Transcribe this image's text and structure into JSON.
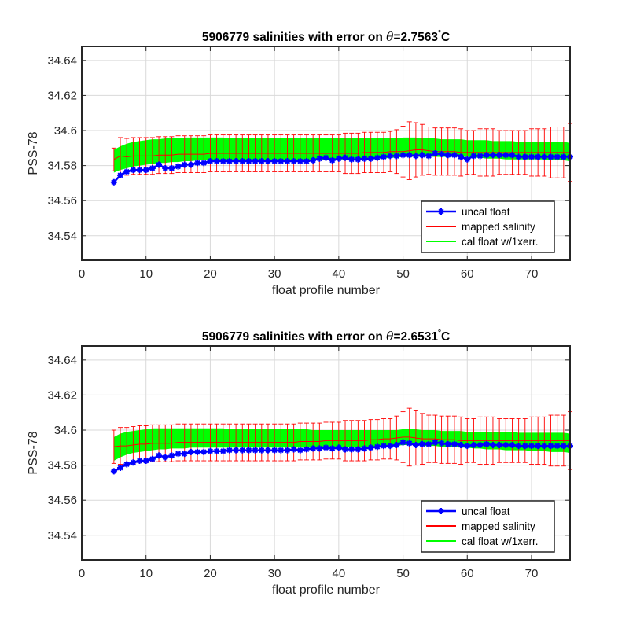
{
  "chart_data": [
    {
      "type": "line",
      "title_prefix": "5906779 salinities with error on ",
      "title_theta": "θ",
      "title_value": "=2.7563",
      "title_degree": "°",
      "title_unit": "C",
      "xlabel": "float profile number",
      "ylabel": "PSS-78",
      "xlim": [
        0,
        76
      ],
      "ylim": [
        34.526,
        34.648
      ],
      "xticks": [
        0,
        10,
        20,
        30,
        40,
        50,
        60,
        70
      ],
      "xtick_labels": [
        "0",
        "10",
        "20",
        "30",
        "40",
        "50",
        "60",
        "70"
      ],
      "yticks": [
        34.54,
        34.56,
        34.58,
        34.6,
        34.62,
        34.64
      ],
      "ytick_labels": [
        "34.54",
        "34.56",
        "34.58",
        "34.6",
        "34.62",
        "34.64"
      ],
      "grid": true,
      "legend_position": "bottom-right",
      "x": [
        5,
        6,
        7,
        8,
        9,
        10,
        11,
        12,
        13,
        14,
        15,
        16,
        17,
        18,
        19,
        20,
        21,
        22,
        23,
        24,
        25,
        26,
        27,
        28,
        29,
        30,
        31,
        32,
        33,
        34,
        35,
        36,
        37,
        38,
        39,
        40,
        41,
        42,
        43,
        44,
        45,
        46,
        47,
        48,
        49,
        50,
        51,
        52,
        53,
        54,
        55,
        56,
        57,
        58,
        59,
        60,
        61,
        62,
        63,
        64,
        65,
        66,
        67,
        68,
        69,
        70,
        71,
        72,
        73,
        74,
        75,
        76
      ],
      "series": [
        {
          "name": "uncal float",
          "role": "uncal",
          "color": "#0000ff",
          "values": [
            34.5705,
            34.5745,
            34.5765,
            34.5775,
            34.5775,
            34.5775,
            34.5785,
            34.5805,
            34.5785,
            34.5785,
            34.5795,
            34.5805,
            34.5805,
            34.5815,
            34.5815,
            34.5825,
            34.5825,
            34.5825,
            34.5825,
            34.5825,
            34.5825,
            34.5825,
            34.5825,
            34.5825,
            34.5825,
            34.5825,
            34.5825,
            34.5825,
            34.5825,
            34.5825,
            34.5825,
            34.583,
            34.584,
            34.5845,
            34.583,
            34.584,
            34.5845,
            34.5835,
            34.5835,
            34.584,
            34.584,
            34.5845,
            34.585,
            34.5855,
            34.5855,
            34.586,
            34.586,
            34.5855,
            34.586,
            34.5855,
            34.587,
            34.5865,
            34.586,
            34.586,
            34.585,
            34.5835,
            34.5855,
            34.5855,
            34.586,
            34.586,
            34.586,
            34.586,
            34.586,
            34.585,
            34.585,
            34.585,
            34.585,
            34.585,
            34.585,
            34.585,
            34.585,
            34.585
          ]
        },
        {
          "name": "mapped salinity",
          "role": "mapped",
          "color": "#ff0000",
          "values": [
            34.5835,
            34.5855,
            34.585,
            34.5855,
            34.5855,
            34.5855,
            34.5855,
            34.586,
            34.586,
            34.586,
            34.5865,
            34.5865,
            34.5865,
            34.5865,
            34.5865,
            34.587,
            34.587,
            34.587,
            34.587,
            34.587,
            34.587,
            34.587,
            34.587,
            34.587,
            34.587,
            34.587,
            34.587,
            34.587,
            34.587,
            34.587,
            34.587,
            34.587,
            34.587,
            34.587,
            34.587,
            34.587,
            34.587,
            34.587,
            34.587,
            34.5875,
            34.5875,
            34.5875,
            34.5875,
            34.588,
            34.588,
            34.588,
            34.5885,
            34.589,
            34.589,
            34.5885,
            34.588,
            34.588,
            34.588,
            34.588,
            34.5875,
            34.5875,
            34.5875,
            34.5875,
            34.5875,
            34.5875,
            34.5875,
            34.5875,
            34.5875,
            34.5875,
            34.5875,
            34.5875,
            34.5875,
            34.5875,
            34.5875,
            34.5875,
            34.5875,
            34.5875
          ],
          "error": [
            0.0065,
            0.0105,
            0.0105,
            0.0105,
            0.0105,
            0.0105,
            0.0105,
            0.0105,
            0.0105,
            0.0105,
            0.0105,
            0.0105,
            0.0105,
            0.0105,
            0.0105,
            0.0105,
            0.0105,
            0.0105,
            0.0105,
            0.0105,
            0.0105,
            0.0105,
            0.0105,
            0.0105,
            0.0105,
            0.0105,
            0.0105,
            0.0105,
            0.0105,
            0.0105,
            0.0105,
            0.0105,
            0.0105,
            0.0105,
            0.0105,
            0.0105,
            0.0115,
            0.0115,
            0.0115,
            0.0115,
            0.0115,
            0.0115,
            0.0115,
            0.0115,
            0.0125,
            0.0145,
            0.0165,
            0.0155,
            0.0145,
            0.0135,
            0.0135,
            0.0135,
            0.0135,
            0.0135,
            0.0135,
            0.0125,
            0.0125,
            0.0135,
            0.0135,
            0.0135,
            0.0125,
            0.0125,
            0.0125,
            0.0125,
            0.0125,
            0.0135,
            0.0135,
            0.0135,
            0.0145,
            0.0145,
            0.0145,
            0.0165
          ]
        },
        {
          "name": "cal float w/1xerr.",
          "role": "calband",
          "color": "#00ff00",
          "lower": [
            34.576,
            34.5775,
            34.5785,
            34.5795,
            34.58,
            34.5805,
            34.581,
            34.5815,
            34.5815,
            34.582,
            34.582,
            34.5825,
            34.5825,
            34.583,
            34.583,
            34.583,
            34.583,
            34.583,
            34.583,
            34.583,
            34.583,
            34.583,
            34.583,
            34.583,
            34.583,
            34.583,
            34.583,
            34.583,
            34.583,
            34.583,
            34.583,
            34.583,
            34.583,
            34.5835,
            34.5835,
            34.5835,
            34.5835,
            34.5835,
            34.5835,
            34.584,
            34.584,
            34.584,
            34.584,
            34.5845,
            34.5845,
            34.585,
            34.585,
            34.585,
            34.585,
            34.585,
            34.585,
            34.585,
            34.585,
            34.585,
            34.585,
            34.585,
            34.5845,
            34.5845,
            34.584,
            34.584,
            34.584,
            34.5835,
            34.5835,
            34.5835,
            34.5835,
            34.5835,
            34.5835,
            34.5835,
            34.583,
            34.583,
            34.583,
            34.5825
          ],
          "upper": [
            34.589,
            34.591,
            34.5925,
            34.5935,
            34.594,
            34.5945,
            34.595,
            34.595,
            34.5955,
            34.5955,
            34.5955,
            34.596,
            34.596,
            34.596,
            34.596,
            34.596,
            34.596,
            34.596,
            34.5955,
            34.5955,
            34.5955,
            34.5955,
            34.5955,
            34.5955,
            34.5955,
            34.5955,
            34.5955,
            34.5955,
            34.5955,
            34.5955,
            34.5955,
            34.5955,
            34.5955,
            34.5955,
            34.5955,
            34.5955,
            34.5955,
            34.5955,
            34.5955,
            34.5955,
            34.5955,
            34.5955,
            34.5955,
            34.5955,
            34.5955,
            34.596,
            34.596,
            34.596,
            34.5955,
            34.5955,
            34.5955,
            34.595,
            34.595,
            34.595,
            34.595,
            34.5945,
            34.5945,
            34.5945,
            34.5945,
            34.594,
            34.594,
            34.594,
            34.594,
            34.5935,
            34.5935,
            34.5935,
            34.5935,
            34.5935,
            34.5935,
            34.5935,
            34.5935,
            34.593
          ]
        }
      ]
    },
    {
      "type": "line",
      "title_prefix": "5906779 salinities with error on ",
      "title_theta": "θ",
      "title_value": "=2.6531",
      "title_degree": "°",
      "title_unit": "C",
      "xlabel": "float profile number",
      "ylabel": "PSS-78",
      "xlim": [
        0,
        76
      ],
      "ylim": [
        34.526,
        34.648
      ],
      "xticks": [
        0,
        10,
        20,
        30,
        40,
        50,
        60,
        70
      ],
      "xtick_labels": [
        "0",
        "10",
        "20",
        "30",
        "40",
        "50",
        "60",
        "70"
      ],
      "yticks": [
        34.54,
        34.56,
        34.58,
        34.6,
        34.62,
        34.64
      ],
      "ytick_labels": [
        "34.54",
        "34.56",
        "34.58",
        "34.6",
        "34.62",
        "34.64"
      ],
      "grid": true,
      "legend_position": "bottom-right",
      "x": [
        5,
        6,
        7,
        8,
        9,
        10,
        11,
        12,
        13,
        14,
        15,
        16,
        17,
        18,
        19,
        20,
        21,
        22,
        23,
        24,
        25,
        26,
        27,
        28,
        29,
        30,
        31,
        32,
        33,
        34,
        35,
        36,
        37,
        38,
        39,
        40,
        41,
        42,
        43,
        44,
        45,
        46,
        47,
        48,
        49,
        50,
        51,
        52,
        53,
        54,
        55,
        56,
        57,
        58,
        59,
        60,
        61,
        62,
        63,
        64,
        65,
        66,
        67,
        68,
        69,
        70,
        71,
        72,
        73,
        74,
        75,
        76
      ],
      "series": [
        {
          "name": "uncal float",
          "role": "uncal",
          "color": "#0000ff",
          "values": [
            34.5765,
            34.5785,
            34.5805,
            34.5815,
            34.5825,
            34.5825,
            34.5835,
            34.5855,
            34.5845,
            34.5855,
            34.5865,
            34.5865,
            34.5875,
            34.5875,
            34.5875,
            34.588,
            34.588,
            34.588,
            34.5885,
            34.5885,
            34.5885,
            34.5885,
            34.5885,
            34.5885,
            34.5885,
            34.5885,
            34.5885,
            34.5885,
            34.589,
            34.5885,
            34.589,
            34.5895,
            34.5895,
            34.59,
            34.5895,
            34.59,
            34.589,
            34.589,
            34.589,
            34.5895,
            34.59,
            34.5905,
            34.591,
            34.591,
            34.5915,
            34.593,
            34.5925,
            34.5915,
            34.592,
            34.592,
            34.593,
            34.5925,
            34.592,
            34.592,
            34.5915,
            34.591,
            34.5915,
            34.5915,
            34.592,
            34.5915,
            34.5915,
            34.5915,
            34.5915,
            34.591,
            34.591,
            34.591,
            34.591,
            34.591,
            34.591,
            34.591,
            34.591,
            34.591
          ]
        },
        {
          "name": "mapped salinity",
          "role": "mapped",
          "color": "#ff0000",
          "values": [
            34.5905,
            34.591,
            34.591,
            34.5915,
            34.592,
            34.592,
            34.5925,
            34.5925,
            34.5925,
            34.5925,
            34.593,
            34.593,
            34.593,
            34.593,
            34.593,
            34.593,
            34.593,
            34.593,
            34.593,
            34.593,
            34.593,
            34.593,
            34.593,
            34.593,
            34.593,
            34.593,
            34.593,
            34.593,
            34.593,
            34.5935,
            34.5935,
            34.5935,
            34.5935,
            34.594,
            34.594,
            34.594,
            34.594,
            34.594,
            34.594,
            34.594,
            34.5945,
            34.5945,
            34.595,
            34.595,
            34.5955,
            34.596,
            34.596,
            34.5955,
            34.595,
            34.595,
            34.595,
            34.5945,
            34.5945,
            34.5945,
            34.594,
            34.594,
            34.594,
            34.594,
            34.594,
            34.594,
            34.594,
            34.594,
            34.594,
            34.594,
            34.594,
            34.594,
            34.594,
            34.594,
            34.594,
            34.594,
            34.594,
            34.594
          ],
          "error": [
            0.0095,
            0.0105,
            0.0105,
            0.0105,
            0.0105,
            0.0105,
            0.0105,
            0.0105,
            0.0105,
            0.0105,
            0.0105,
            0.0105,
            0.0105,
            0.0105,
            0.0105,
            0.0105,
            0.0105,
            0.0105,
            0.0105,
            0.0105,
            0.0105,
            0.0105,
            0.0105,
            0.0105,
            0.0105,
            0.0105,
            0.0105,
            0.0105,
            0.0105,
            0.0105,
            0.0105,
            0.0105,
            0.0105,
            0.0105,
            0.0105,
            0.0105,
            0.0115,
            0.0115,
            0.0115,
            0.0115,
            0.0115,
            0.0115,
            0.0115,
            0.0115,
            0.0125,
            0.0145,
            0.0165,
            0.0155,
            0.0145,
            0.0135,
            0.0135,
            0.0135,
            0.0135,
            0.0135,
            0.0135,
            0.0125,
            0.0125,
            0.0135,
            0.0135,
            0.0135,
            0.0125,
            0.0125,
            0.0125,
            0.0125,
            0.0125,
            0.0135,
            0.0135,
            0.0135,
            0.0145,
            0.0145,
            0.0145,
            0.0165
          ]
        },
        {
          "name": "cal float w/1xerr.",
          "role": "calband",
          "color": "#00ff00",
          "lower": [
            34.5825,
            34.5845,
            34.586,
            34.587,
            34.5875,
            34.588,
            34.5885,
            34.589,
            34.589,
            34.5895,
            34.5895,
            34.5895,
            34.59,
            34.59,
            34.59,
            34.59,
            34.59,
            34.59,
            34.59,
            34.59,
            34.59,
            34.59,
            34.59,
            34.59,
            34.59,
            34.59,
            34.59,
            34.59,
            34.59,
            34.59,
            34.59,
            34.59,
            34.59,
            34.59,
            34.59,
            34.59,
            34.59,
            34.59,
            34.59,
            34.59,
            34.59,
            34.59,
            34.5905,
            34.5905,
            34.591,
            34.5915,
            34.5915,
            34.5915,
            34.591,
            34.591,
            34.591,
            34.5905,
            34.5905,
            34.5905,
            34.59,
            34.59,
            34.5895,
            34.5895,
            34.589,
            34.589,
            34.589,
            34.5885,
            34.5885,
            34.5885,
            34.5885,
            34.588,
            34.588,
            34.588,
            34.5875,
            34.5875,
            34.5875,
            34.587
          ],
          "upper": [
            34.596,
            34.598,
            34.599,
            34.5995,
            34.6,
            34.6005,
            34.601,
            34.601,
            34.601,
            34.601,
            34.601,
            34.601,
            34.601,
            34.601,
            34.601,
            34.601,
            34.601,
            34.601,
            34.6005,
            34.6005,
            34.6005,
            34.6005,
            34.6005,
            34.6005,
            34.6005,
            34.6005,
            34.6005,
            34.6005,
            34.6005,
            34.6005,
            34.6005,
            34.6,
            34.6,
            34.6,
            34.6,
            34.6,
            34.6,
            34.6,
            34.6,
            34.6,
            34.6,
            34.6,
            34.6,
            34.6,
            34.6,
            34.6005,
            34.6005,
            34.6005,
            34.6,
            34.6,
            34.6,
            34.5995,
            34.5995,
            34.5995,
            34.5995,
            34.599,
            34.599,
            34.599,
            34.599,
            34.599,
            34.599,
            34.599,
            34.599,
            34.5985,
            34.5985,
            34.5985,
            34.5985,
            34.5985,
            34.5985,
            34.5985,
            34.5985,
            34.598
          ]
        }
      ]
    }
  ]
}
